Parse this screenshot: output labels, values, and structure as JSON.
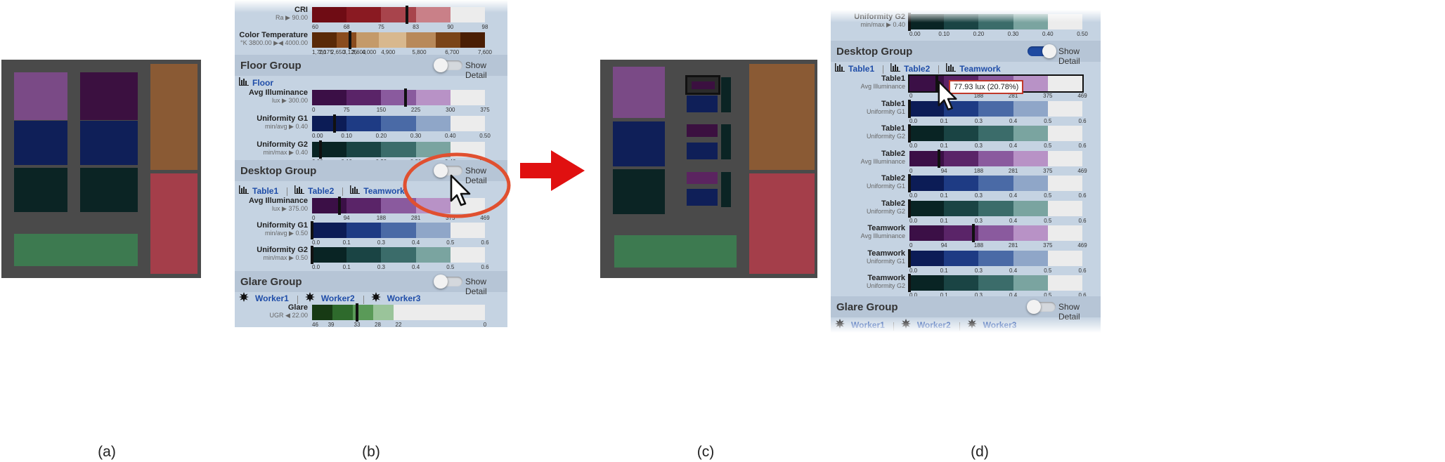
{
  "captions": [
    "(a)",
    "(b)",
    "(c)",
    "(d)"
  ],
  "colors": {
    "floorplan_bg": "#4a4a4a",
    "purple_light": "#7a4a86",
    "purple_dark": "#3b1040",
    "navy": "#0f1f58",
    "teal_dark": "#0b2424",
    "brown": "#8a5a34",
    "red": "#a43e4a",
    "green": "#3d7a50",
    "arrow": "#e01010",
    "highlight_ring": "#e05030",
    "toggle_on": "#1f4aa0"
  },
  "panel_b": {
    "cri": {
      "name": "CRI",
      "sub": "Ra ▶ 90.00",
      "ticks": [
        "60",
        "68",
        "75",
        "83",
        "90",
        "98"
      ]
    },
    "color_temp": {
      "name": "Color Temperature",
      "sub": "°K 3800.00 ▶◀ 4000.00",
      "ticks": [
        "1,700",
        "2,175",
        "2,650",
        "3,125",
        "3,600",
        "4,000",
        "4,900",
        "5,800",
        "6,700",
        "7,600"
      ]
    },
    "floor_group": {
      "title": "Floor Group",
      "toggle_label": "Show Detail",
      "tab": "Floor"
    },
    "floor_metrics": [
      {
        "name": "Avg Illuminance",
        "sub": "lux ▶ 300.00",
        "ticks": [
          "0",
          "75",
          "150",
          "225",
          "300",
          "375"
        ]
      },
      {
        "name": "Uniformity G1",
        "sub": "min/avg ▶ 0.40",
        "ticks": [
          "0.00",
          "0.10",
          "0.20",
          "0.30",
          "0.40",
          "0.50"
        ]
      },
      {
        "name": "Uniformity G2",
        "sub": "min/max ▶ 0.40",
        "ticks": [
          "0.00",
          "0.10",
          "0.20",
          "0.30",
          "0.40",
          "0.50"
        ]
      }
    ],
    "desktop_group": {
      "title": "Desktop Group",
      "toggle_label": "Show Detail",
      "tabs": [
        "Table1",
        "Table2",
        "Teamwork"
      ]
    },
    "desktop_metrics": [
      {
        "name": "Avg Illuminance",
        "sub": "lux ▶ 375.00",
        "ticks": [
          "0",
          "94",
          "188",
          "281",
          "375",
          "469"
        ]
      },
      {
        "name": "Uniformity G1",
        "sub": "min/avg ▶ 0.50",
        "ticks": [
          "0.0",
          "0.1",
          "0.3",
          "0.4",
          "0.5",
          "0.6"
        ]
      },
      {
        "name": "Uniformity G2",
        "sub": "min/max ▶ 0.50",
        "ticks": [
          "0.0",
          "0.1",
          "0.3",
          "0.4",
          "0.5",
          "0.6"
        ]
      }
    ],
    "glare_group": {
      "title": "Glare Group",
      "toggle_label": "Show Detail",
      "tabs": [
        "Worker1",
        "Worker2",
        "Worker3"
      ]
    },
    "glare": {
      "name": "Glare",
      "sub": "UGR ◀ 22.00",
      "ticks": [
        "46",
        "39",
        "33",
        "28",
        "22",
        "0"
      ]
    }
  },
  "panel_d": {
    "top_metric": {
      "name": "Uniformity G2",
      "sub": "min/max ▶ 0.40",
      "ticks": [
        "0.00",
        "0.10",
        "0.20",
        "0.30",
        "0.40",
        "0.50"
      ]
    },
    "desktop_group": {
      "title": "Desktop Group",
      "toggle_label": "Show Detail",
      "tabs": [
        "Table1",
        "Table2",
        "Teamwork"
      ]
    },
    "tooltip": "77.93 lux (20.78%)",
    "metrics": [
      {
        "name": "Table1",
        "sub": "Avg Illuminance",
        "ticks": [
          "0",
          "94",
          "188",
          "281",
          "375",
          "469"
        ]
      },
      {
        "name": "Table1",
        "sub": "Uniformity G1",
        "ticks": [
          "0.0",
          "0.1",
          "0.3",
          "0.4",
          "0.5",
          "0.6"
        ]
      },
      {
        "name": "Table1",
        "sub": "Uniformity G2",
        "ticks": [
          "0.0",
          "0.1",
          "0.3",
          "0.4",
          "0.5",
          "0.6"
        ]
      },
      {
        "name": "Table2",
        "sub": "Avg Illuminance",
        "ticks": [
          "0",
          "94",
          "188",
          "281",
          "375",
          "469"
        ]
      },
      {
        "name": "Table2",
        "sub": "Uniformity G1",
        "ticks": [
          "0.0",
          "0.1",
          "0.3",
          "0.4",
          "0.5",
          "0.6"
        ]
      },
      {
        "name": "Table2",
        "sub": "Uniformity G2",
        "ticks": [
          "0.0",
          "0.1",
          "0.3",
          "0.4",
          "0.5",
          "0.6"
        ]
      },
      {
        "name": "Teamwork",
        "sub": "Avg Illuminance",
        "ticks": [
          "0",
          "94",
          "188",
          "281",
          "375",
          "469"
        ]
      },
      {
        "name": "Teamwork",
        "sub": "Uniformity G1",
        "ticks": [
          "0.0",
          "0.1",
          "0.3",
          "0.4",
          "0.5",
          "0.6"
        ]
      },
      {
        "name": "Teamwork",
        "sub": "Uniformity G2",
        "ticks": [
          "0.0",
          "0.1",
          "0.3",
          "0.4",
          "0.5",
          "0.6"
        ]
      }
    ],
    "glare_group": {
      "title": "Glare Group",
      "toggle_label": "Show Detail",
      "tabs": [
        "Worker1",
        "Worker2",
        "Worker3"
      ]
    }
  }
}
